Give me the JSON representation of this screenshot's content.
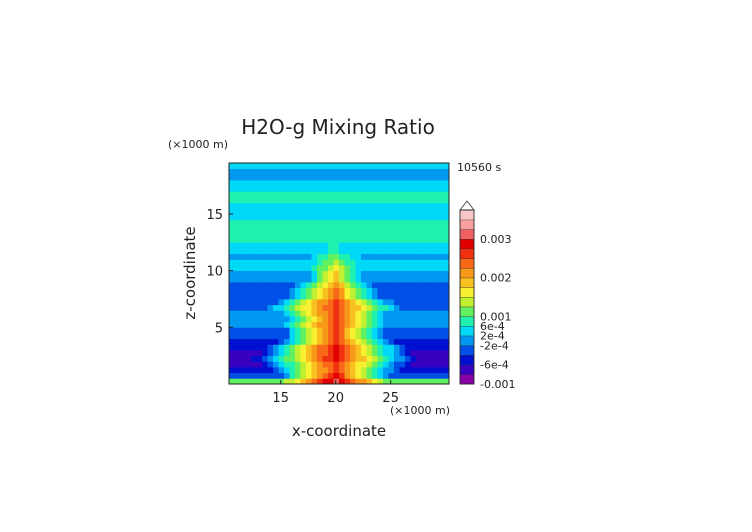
{
  "chart_data": {
    "type": "heatmap",
    "title": "H2O-g Mixing Ratio",
    "time_label": "10560 s",
    "xlabel": "x-coordinate",
    "ylabel": "z-coordinate",
    "x_unit": "(×1000 m)",
    "y_unit": "(×1000 m)",
    "xlim": [
      10.3,
      30.3
    ],
    "ylim": [
      0,
      19.5
    ],
    "x_ticks": [
      15,
      20,
      25
    ],
    "y_ticks": [
      5,
      10,
      15
    ],
    "grid": false,
    "colorbar": {
      "placement": "right",
      "labels": [
        "0.003",
        "0.002",
        "0.001",
        "6e-4",
        "2e-4",
        "-2e-4",
        "-6e-4",
        "-0.001"
      ],
      "label_levels": [
        15,
        11,
        7,
        6,
        5,
        4,
        2,
        0
      ],
      "colors": [
        "#8a00a8",
        "#3a00c0",
        "#0010d0",
        "#0050e8",
        "#0098f0",
        "#00d8f8",
        "#20f0b0",
        "#60f060",
        "#c0f030",
        "#f8f030",
        "#f8c020",
        "#f89818",
        "#f86818",
        "#f03010",
        "#e00000",
        "#f06060",
        "#f8a0a0",
        "#f8c8c8"
      ],
      "over_color": "#ffffff"
    },
    "grid_data": {
      "x_start": 10.3,
      "x_step": 0.5,
      "z_start": 0,
      "z_step": 0.5,
      "base_profile": [
        7,
        3,
        2,
        1,
        1,
        1,
        2,
        2,
        3,
        3,
        4,
        4,
        4,
        3,
        3,
        3,
        3,
        3,
        4,
        4,
        5,
        5,
        4,
        5,
        5,
        6,
        6,
        6,
        6,
        5,
        5,
        5,
        6,
        6,
        5,
        5,
        4,
        4,
        5,
        5
      ],
      "plume_profile": [
        15,
        14,
        13,
        13,
        14,
        14,
        14,
        13,
        13,
        13,
        13,
        13,
        13,
        13,
        13,
        12,
        12,
        11,
        10,
        10,
        9,
        8,
        7,
        6,
        6,
        0,
        0,
        0,
        0,
        0,
        0,
        0,
        0,
        0,
        0,
        0,
        0,
        0,
        0,
        0
      ],
      "plume_width": [
        1.3,
        1.0,
        1.2,
        1.3,
        1.3,
        1.2,
        1.2,
        1.1,
        1.0,
        1.0,
        1.2,
        1.1,
        1.2,
        1.4,
        1.2,
        1.0,
        1.0,
        1.0,
        0.9,
        0.9,
        1.2,
        1.5,
        2.0,
        2.2,
        2.0,
        0,
        0,
        0,
        0,
        0,
        0,
        0,
        0,
        0,
        0,
        0,
        0,
        0,
        0,
        0
      ],
      "plume_center": 19.9
    }
  }
}
